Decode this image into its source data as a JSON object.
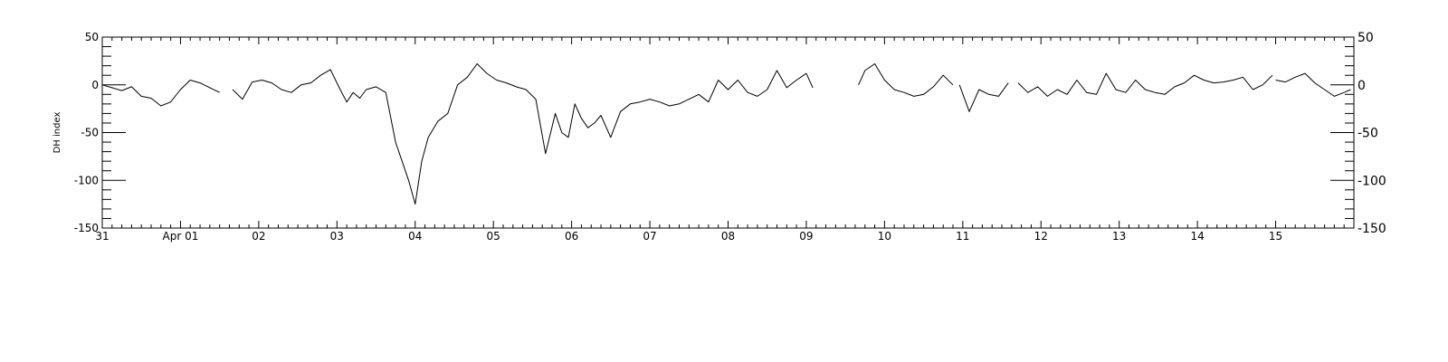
{
  "chart_data": {
    "type": "line",
    "title": "",
    "ylabel": "DH index",
    "xlabel": "",
    "ylim": [
      -150,
      50
    ],
    "xlim": [
      "03-31 00:00",
      "04-16 00:00"
    ],
    "grid": false,
    "legend": "none",
    "line_color": "#000000",
    "x_ticks": [
      {
        "x": "03-31",
        "label": "31"
      },
      {
        "x": "04-01",
        "label": "Apr 01"
      },
      {
        "x": "04-02",
        "label": "02"
      },
      {
        "x": "04-03",
        "label": "03"
      },
      {
        "x": "04-04",
        "label": "04"
      },
      {
        "x": "04-05",
        "label": "05"
      },
      {
        "x": "04-06",
        "label": "06"
      },
      {
        "x": "04-07",
        "label": "07"
      },
      {
        "x": "04-08",
        "label": "08"
      },
      {
        "x": "04-09",
        "label": "09"
      },
      {
        "x": "04-10",
        "label": "10"
      },
      {
        "x": "04-11",
        "label": "11"
      },
      {
        "x": "04-12",
        "label": "12"
      },
      {
        "x": "04-13",
        "label": "13"
      },
      {
        "x": "04-14",
        "label": "14"
      },
      {
        "x": "04-15",
        "label": "15"
      }
    ],
    "y_ticks_left": [
      {
        "y": 50,
        "label": "50"
      },
      {
        "y": 0,
        "label": "0"
      },
      {
        "y": -50,
        "label": "-50"
      },
      {
        "y": -100,
        "label": "-100"
      },
      {
        "y": -150,
        "label": "-150"
      }
    ],
    "y_ticks_right": [
      {
        "y": 50,
        "label": "50"
      },
      {
        "y": 0,
        "label": "0"
      },
      {
        "y": -50,
        "label": "-50"
      },
      {
        "y": -100,
        "label": "-100"
      },
      {
        "y": -150,
        "label": "-150"
      }
    ],
    "series": [
      {
        "segments": [
          {
            "x": [
              "03-31 00:00",
              "03-31 03:00",
              "03-31 06:00",
              "03-31 09:00",
              "03-31 12:00",
              "03-31 15:00",
              "03-31 18:00",
              "03-31 21:00",
              "04-01 00:00",
              "04-01 03:00",
              "04-01 06:00",
              "04-01 09:00",
              "04-01 12:00"
            ],
            "y": [
              0,
              -3,
              -6,
              -2,
              -12,
              -14,
              -22,
              -18,
              -5,
              5,
              2,
              -3,
              -8
            ]
          },
          {
            "x": [
              "04-01 16:00",
              "04-01 19:00",
              "04-01 22:00",
              "04-02 01:00",
              "04-02 04:00",
              "04-02 07:00",
              "04-02 10:00",
              "04-02 13:00",
              "04-02 16:00",
              "04-02 19:00",
              "04-02 22:00",
              "04-03 01:00",
              "04-03 03:00",
              "04-03 05:00",
              "04-03 07:00",
              "04-03 09:00",
              "04-03 12:00",
              "04-03 15:00",
              "04-03 18:00",
              "04-03 20:00",
              "04-03 22:00",
              "04-04 00:00",
              "04-04 02:00",
              "04-04 04:00",
              "04-04 07:00",
              "04-04 10:00",
              "04-04 13:00",
              "04-04 16:00",
              "04-04 19:00",
              "04-04 22:00",
              "04-05 01:00",
              "04-05 04:00",
              "04-05 07:00",
              "04-05 10:00",
              "04-05 13:00",
              "04-05 16:00",
              "04-05 19:00",
              "04-05 21:00",
              "04-05 23:00",
              "04-06 01:00",
              "04-06 03:00",
              "04-06 05:00",
              "04-06 07:00",
              "04-06 09:00",
              "04-06 12:00",
              "04-06 15:00",
              "04-06 18:00",
              "04-06 21:00",
              "04-07 00:00",
              "04-07 03:00",
              "04-07 06:00",
              "04-07 09:00",
              "04-07 12:00",
              "04-07 15:00",
              "04-07 18:00",
              "04-07 21:00",
              "04-08 00:00",
              "04-08 03:00",
              "04-08 06:00",
              "04-08 09:00",
              "04-08 12:00",
              "04-08 15:00",
              "04-08 18:00",
              "04-08 21:00",
              "04-09 00:00",
              "04-09 02:00"
            ],
            "y": [
              -5,
              -15,
              3,
              5,
              2,
              -5,
              -8,
              0,
              2,
              10,
              16,
              -5,
              -18,
              -8,
              -14,
              -5,
              -2,
              -8,
              -60,
              -80,
              -100,
              -125,
              -80,
              -55,
              -38,
              -30,
              0,
              8,
              22,
              12,
              5,
              2,
              -2,
              -5,
              -15,
              -72,
              -30,
              -50,
              -55,
              -20,
              -35,
              -45,
              -40,
              -32,
              -55,
              -28,
              -20,
              -18,
              -15,
              -18,
              -22,
              -20,
              -15,
              -10,
              -18,
              5,
              -5,
              5,
              -8,
              -12,
              -5,
              15,
              -3,
              5,
              12,
              -3
            ]
          },
          {
            "x": [
              "04-09 16:00",
              "04-09 18:00",
              "04-09 21:00",
              "04-10 00:00",
              "04-10 03:00",
              "04-10 06:00",
              "04-10 09:00",
              "04-10 12:00",
              "04-10 15:00",
              "04-10 18:00",
              "04-10 21:00"
            ],
            "y": [
              0,
              15,
              22,
              5,
              -5,
              -8,
              -12,
              -10,
              -2,
              10,
              0
            ]
          },
          {
            "x": [
              "04-10 23:00",
              "04-11 02:00",
              "04-11 05:00",
              "04-11 08:00",
              "04-11 11:00",
              "04-11 14:00"
            ],
            "y": [
              0,
              -28,
              -5,
              -10,
              -12,
              2
            ]
          },
          {
            "x": [
              "04-11 17:00",
              "04-11 20:00",
              "04-11 23:00",
              "04-12 02:00",
              "04-12 05:00",
              "04-12 08:00",
              "04-12 11:00",
              "04-12 14:00",
              "04-12 17:00",
              "04-12 20:00",
              "04-12 23:00",
              "04-13 02:00",
              "04-13 05:00",
              "04-13 08:00",
              "04-13 11:00",
              "04-13 14:00",
              "04-13 17:00",
              "04-13 20:00",
              "04-13 23:00",
              "04-14 02:00",
              "04-14 05:00",
              "04-14 08:00",
              "04-14 11:00",
              "04-14 14:00",
              "04-14 17:00",
              "04-14 20:00",
              "04-14 23:00"
            ],
            "y": [
              2,
              -8,
              -2,
              -12,
              -5,
              -10,
              5,
              -8,
              -10,
              12,
              -5,
              -8,
              5,
              -5,
              -8,
              -10,
              -2,
              2,
              10,
              5,
              2,
              3,
              5,
              8,
              -5,
              0,
              10
            ]
          },
          {
            "x": [
              "04-15 00:00",
              "04-15 03:00",
              "04-15 06:00",
              "04-15 09:00",
              "04-15 12:00",
              "04-15 15:00",
              "04-15 18:00",
              "04-15 21:00",
              "04-15 23:00"
            ],
            "y": [
              5,
              3,
              8,
              12,
              2,
              -5,
              -12,
              -8,
              -5
            ]
          }
        ]
      }
    ]
  }
}
